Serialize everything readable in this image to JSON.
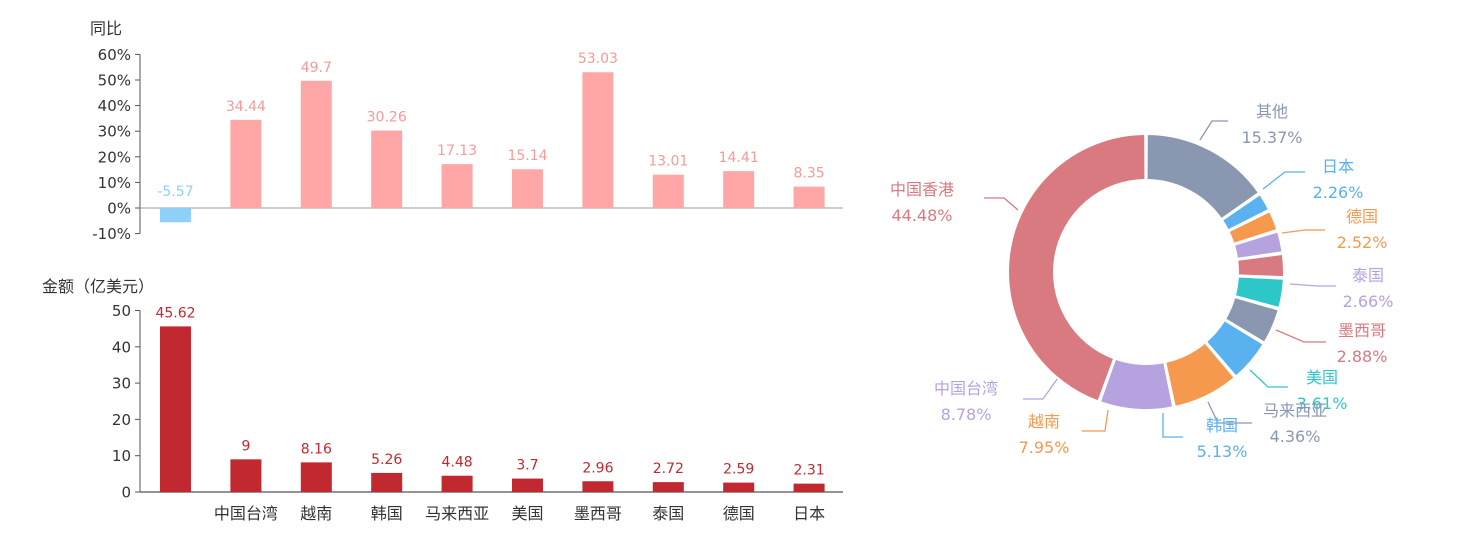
{
  "chart_data": [
    {
      "type": "bar",
      "ylabel": "同比",
      "y_ticks": [
        "60%",
        "50%",
        "40%",
        "30%",
        "20%",
        "10%",
        "0%",
        "-10%"
      ],
      "ylim": [
        -10,
        60
      ],
      "categories": [
        "",
        "中国台湾",
        "越南",
        "韩国",
        "马来西亚",
        "美国",
        "墨西哥",
        "泰国",
        "德国",
        "日本"
      ],
      "values": [
        -5.57,
        34.44,
        49.7,
        30.26,
        17.13,
        15.14,
        53.03,
        13.01,
        14.41,
        8.35
      ],
      "labels": [
        "-5.57",
        "34.44",
        "49.7",
        "30.26",
        "17.13",
        "15.14",
        "53.03",
        "13.01",
        "14.41",
        "8.35"
      ],
      "colors": {
        "positive": "#ffa7a7",
        "negative": "#8fd0f8",
        "positive_label": "#f49b9b",
        "negative_label": "#8fd0f8"
      }
    },
    {
      "type": "bar",
      "ylabel": "金额（亿美元）",
      "y_ticks": [
        "50",
        "40",
        "30",
        "20",
        "10",
        "0"
      ],
      "ylim": [
        0,
        50
      ],
      "categories": [
        "",
        "中国台湾",
        "越南",
        "韩国",
        "马来西亚",
        "美国",
        "墨西哥",
        "泰国",
        "德国",
        "日本"
      ],
      "values": [
        45.62,
        9,
        8.16,
        5.26,
        4.48,
        3.7,
        2.96,
        2.72,
        2.59,
        2.31
      ],
      "labels": [
        "45.62",
        "9",
        "8.16",
        "5.26",
        "4.48",
        "3.7",
        "2.96",
        "2.72",
        "2.59",
        "2.31"
      ],
      "colors": {
        "bar": "#c1282f",
        "label": "#c1282f"
      }
    },
    {
      "type": "pie",
      "subtype": "donut",
      "slices": [
        {
          "name": "其他",
          "value": 15.37,
          "label": "15.37%",
          "color": "#8a97b0"
        },
        {
          "name": "日本",
          "value": 2.26,
          "label": "2.26%",
          "color": "#5ab1ef"
        },
        {
          "name": "德国",
          "value": 2.52,
          "label": "2.52%",
          "color": "#f5994e"
        },
        {
          "name": "泰国",
          "value": 2.66,
          "label": "2.66%",
          "color": "#b6a2de"
        },
        {
          "name": "墨西哥",
          "value": 2.88,
          "label": "2.88%",
          "color": "#d87a80"
        },
        {
          "name": "美国",
          "value": 3.61,
          "label": "3.61%",
          "color": "#2ec7c9"
        },
        {
          "name": "马来西亚",
          "value": 4.36,
          "label": "4.36%",
          "color": "#8a97b0"
        },
        {
          "name": "韩国",
          "value": 5.13,
          "label": "5.13%",
          "color": "#5ab1ef"
        },
        {
          "name": "越南",
          "value": 7.95,
          "label": "7.95%",
          "color": "#f5994e"
        },
        {
          "name": "中国台湾",
          "value": 8.78,
          "label": "8.78%",
          "color": "#b6a2de"
        },
        {
          "name": "中国香港",
          "value": 44.48,
          "label": "44.48%",
          "color": "#d87a80"
        }
      ]
    }
  ]
}
